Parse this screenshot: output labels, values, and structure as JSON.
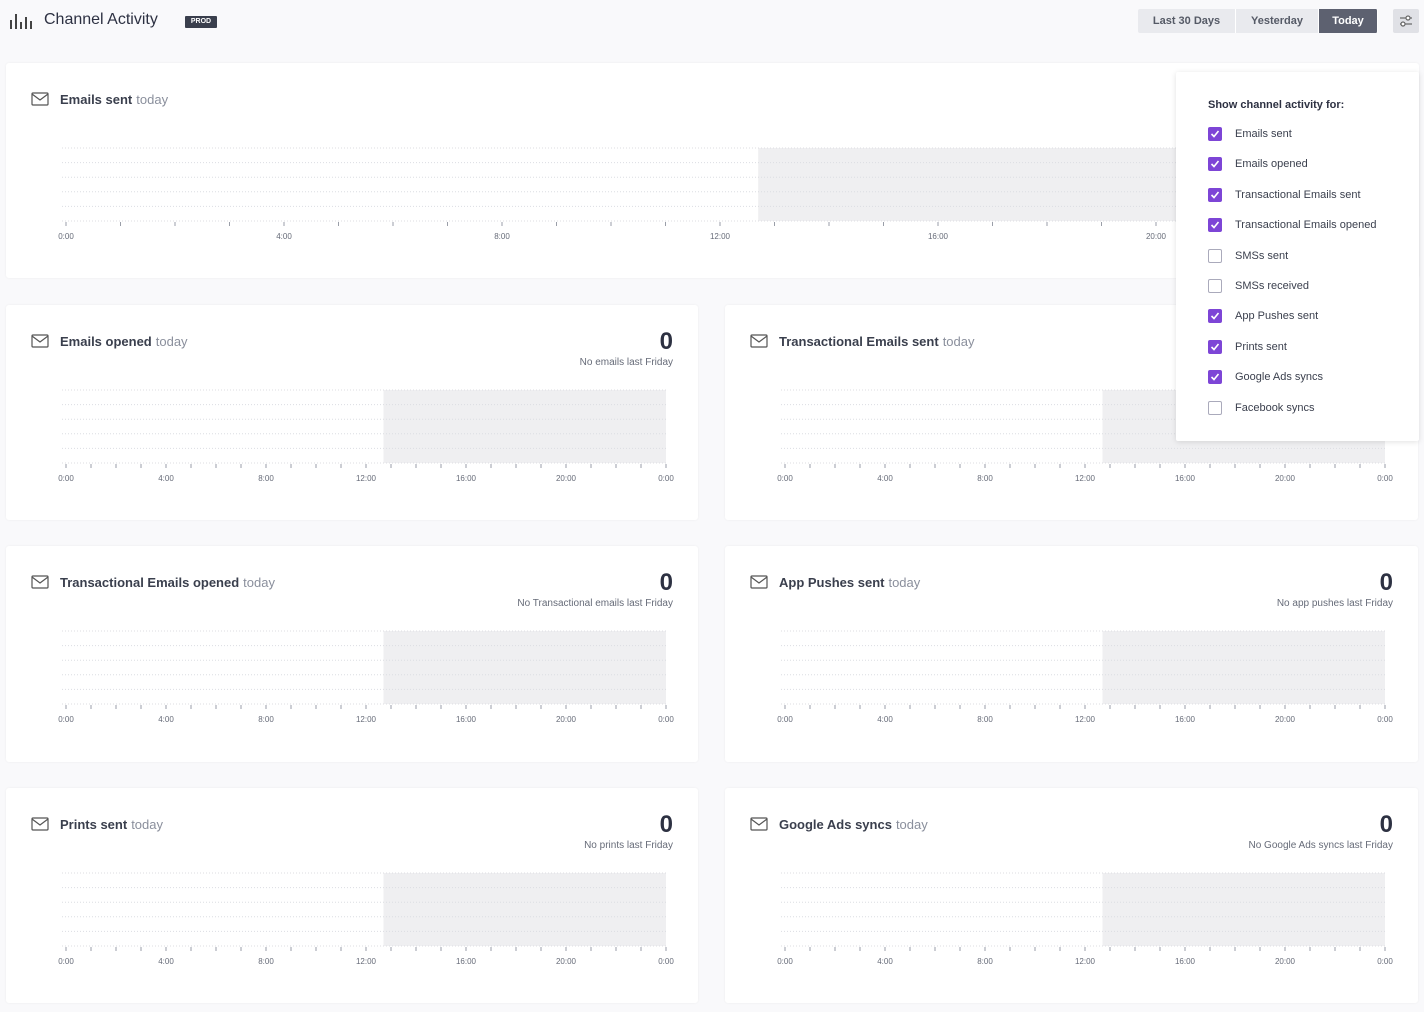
{
  "header": {
    "title": "Channel Activity",
    "badge": "PROD",
    "ranges": [
      "Last 30 Days",
      "Yesterday",
      "Today"
    ],
    "active_range": 2
  },
  "panel": {
    "heading": "Show channel activity for:",
    "options": [
      {
        "label": "Emails sent",
        "checked": true
      },
      {
        "label": "Emails opened",
        "checked": true
      },
      {
        "label": "Transactional Emails sent",
        "checked": true
      },
      {
        "label": "Transactional Emails opened",
        "checked": true
      },
      {
        "label": "SMSs sent",
        "checked": false
      },
      {
        "label": "SMSs received",
        "checked": false
      },
      {
        "label": "App Pushes sent",
        "checked": true
      },
      {
        "label": "Prints sent",
        "checked": true
      },
      {
        "label": "Google Ads syncs",
        "checked": true
      },
      {
        "label": "Facebook syncs",
        "checked": false
      }
    ]
  },
  "cards": [
    {
      "title": "Emails sent",
      "suffix": "today",
      "ticks": [
        "0:00",
        "4:00",
        "8:00",
        "12:00",
        "16:00",
        "20:00"
      ]
    },
    {
      "title": "Emails opened",
      "suffix": "today",
      "value": 0,
      "note": "No emails last Friday",
      "ticks": [
        "0:00",
        "4:00",
        "8:00",
        "12:00",
        "16:00",
        "20:00",
        "0:00"
      ]
    },
    {
      "title": "Transactional Emails sent",
      "suffix": "today",
      "ticks": [
        "0:00",
        "4:00",
        "8:00",
        "12:00",
        "16:00",
        "20:00",
        "0:00"
      ]
    },
    {
      "title": "Transactional Emails opened",
      "suffix": "today",
      "value": 0,
      "note": "No Transactional emails last Friday",
      "ticks": [
        "0:00",
        "4:00",
        "8:00",
        "12:00",
        "16:00",
        "20:00",
        "0:00"
      ]
    },
    {
      "title": "App Pushes sent",
      "suffix": "today",
      "value": 0,
      "note": "No app pushes last Friday",
      "ticks": [
        "0:00",
        "4:00",
        "8:00",
        "12:00",
        "16:00",
        "20:00",
        "0:00"
      ]
    },
    {
      "title": "Prints sent",
      "suffix": "today",
      "value": 0,
      "note": "No prints last Friday",
      "ticks": [
        "0:00",
        "4:00",
        "8:00",
        "12:00",
        "16:00",
        "20:00",
        "0:00"
      ]
    },
    {
      "title": "Google Ads syncs",
      "suffix": "today",
      "value": 0,
      "note": "No Google Ads syncs last Friday",
      "ticks": [
        "0:00",
        "4:00",
        "8:00",
        "12:00",
        "16:00",
        "20:00",
        "0:00"
      ]
    }
  ]
}
